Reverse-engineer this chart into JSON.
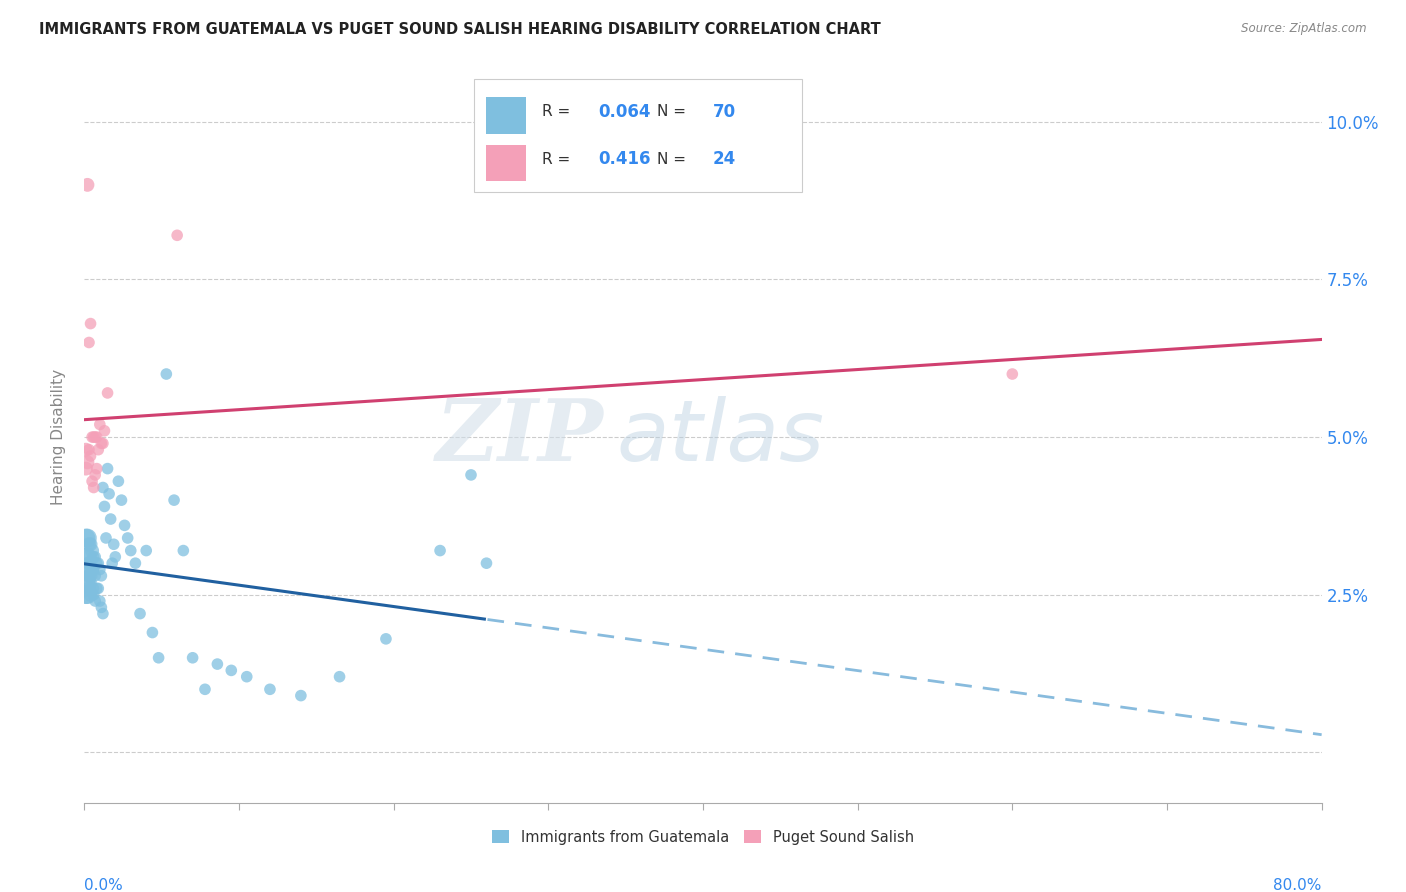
{
  "title": "IMMIGRANTS FROM GUATEMALA VS PUGET SOUND SALISH HEARING DISABILITY CORRELATION CHART",
  "source": "Source: ZipAtlas.com",
  "ylabel": "Hearing Disability",
  "legend1_r": "0.064",
  "legend1_n": "70",
  "legend2_r": "0.416",
  "legend2_n": "24",
  "legend_label1": "Immigrants from Guatemala",
  "legend_label2": "Puget Sound Salish",
  "blue_color": "#7fbfdf",
  "pink_color": "#f4a0b8",
  "blue_line_color": "#2060a0",
  "pink_line_color": "#d04070",
  "watermark_zip": "ZIP",
  "watermark_atlas": "atlas",
  "xlim": [
    0.0,
    0.8
  ],
  "ylim": [
    -0.008,
    0.108
  ],
  "ytick_vals": [
    0.0,
    0.025,
    0.05,
    0.075,
    0.1
  ],
  "ytick_labels": [
    "",
    "2.5%",
    "5.0%",
    "7.5%",
    "10.0%"
  ],
  "blue_x": [
    0.001,
    0.001,
    0.001,
    0.001,
    0.001,
    0.002,
    0.002,
    0.002,
    0.002,
    0.002,
    0.003,
    0.003,
    0.003,
    0.003,
    0.004,
    0.004,
    0.004,
    0.004,
    0.005,
    0.005,
    0.005,
    0.006,
    0.006,
    0.006,
    0.007,
    0.007,
    0.007,
    0.008,
    0.008,
    0.009,
    0.009,
    0.01,
    0.01,
    0.011,
    0.011,
    0.012,
    0.012,
    0.013,
    0.014,
    0.015,
    0.016,
    0.017,
    0.018,
    0.019,
    0.02,
    0.022,
    0.024,
    0.026,
    0.028,
    0.03,
    0.033,
    0.036,
    0.04,
    0.044,
    0.048,
    0.053,
    0.058,
    0.064,
    0.07,
    0.078,
    0.086,
    0.095,
    0.105,
    0.12,
    0.14,
    0.165,
    0.195,
    0.23,
    0.25,
    0.26
  ],
  "blue_y": [
    0.034,
    0.031,
    0.029,
    0.027,
    0.025,
    0.034,
    0.031,
    0.029,
    0.027,
    0.025,
    0.033,
    0.03,
    0.028,
    0.026,
    0.033,
    0.03,
    0.028,
    0.025,
    0.032,
    0.029,
    0.026,
    0.031,
    0.029,
    0.025,
    0.031,
    0.028,
    0.024,
    0.03,
    0.026,
    0.03,
    0.026,
    0.029,
    0.024,
    0.028,
    0.023,
    0.042,
    0.022,
    0.039,
    0.034,
    0.045,
    0.041,
    0.037,
    0.03,
    0.033,
    0.031,
    0.043,
    0.04,
    0.036,
    0.034,
    0.032,
    0.03,
    0.022,
    0.032,
    0.019,
    0.015,
    0.06,
    0.04,
    0.032,
    0.015,
    0.01,
    0.014,
    0.013,
    0.012,
    0.01,
    0.009,
    0.012,
    0.018,
    0.032,
    0.044,
    0.03
  ],
  "pink_x": [
    0.001,
    0.001,
    0.002,
    0.002,
    0.003,
    0.003,
    0.004,
    0.004,
    0.005,
    0.005,
    0.006,
    0.006,
    0.007,
    0.007,
    0.008,
    0.008,
    0.009,
    0.01,
    0.011,
    0.012,
    0.013,
    0.015,
    0.06,
    0.6
  ],
  "pink_y": [
    0.048,
    0.045,
    0.09,
    0.046,
    0.065,
    0.048,
    0.068,
    0.047,
    0.05,
    0.043,
    0.05,
    0.042,
    0.05,
    0.044,
    0.05,
    0.045,
    0.048,
    0.052,
    0.049,
    0.049,
    0.051,
    0.057,
    0.082,
    0.06
  ],
  "blue_line_x0": 0.0,
  "blue_line_x_solid_end": 0.26,
  "blue_line_x1": 0.8,
  "pink_line_x0": 0.0,
  "pink_line_x1": 0.8
}
